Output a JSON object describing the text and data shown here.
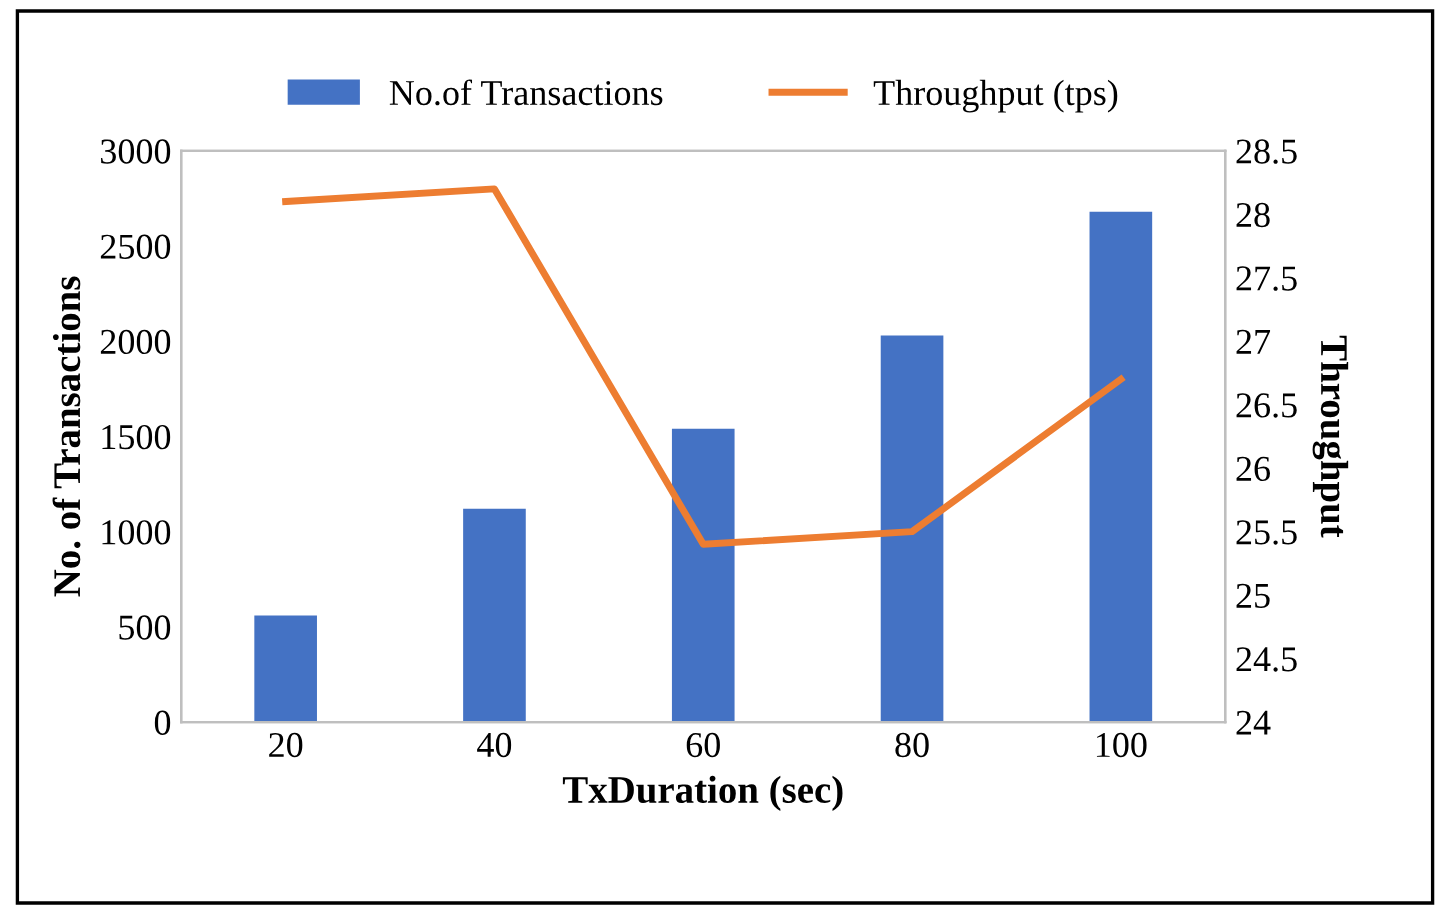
{
  "chart_data": {
    "type": "bar",
    "categories": [
      "20",
      "40",
      "60",
      "80",
      "100"
    ],
    "xlabel": "TxDuration (sec)",
    "ylabel": "No. of Transactions",
    "y2label": "Throughput",
    "series": [
      {
        "name": "No.of Transactions",
        "color": "#4472c4",
        "values": [
          560,
          1120,
          1540,
          2030,
          2680
        ]
      },
      {
        "name": "Throughput (tps)",
        "type": "line",
        "axis": "y2",
        "color": "#ed7d31",
        "values": [
          28.1,
          28.2,
          25.4,
          25.5,
          26.7
        ]
      }
    ],
    "ylim": [
      0,
      3000
    ],
    "yticks": [
      0,
      500,
      1000,
      1500,
      2000,
      2500,
      3000
    ],
    "y2lim": [
      24,
      28.5
    ],
    "y2ticks": [
      24,
      24.5,
      25,
      25.5,
      26,
      26.5,
      27,
      27.5,
      28,
      28.5
    ],
    "grid": false,
    "legend": "top",
    "marker": "none"
  }
}
